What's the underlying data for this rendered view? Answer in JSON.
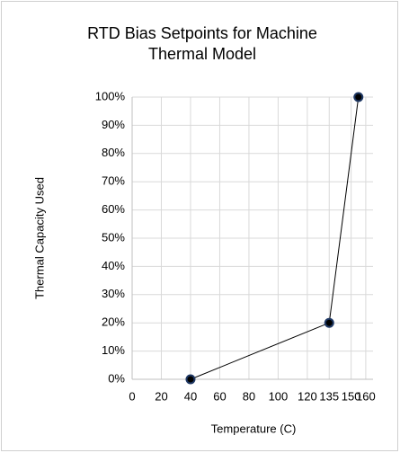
{
  "chart_data": {
    "type": "line",
    "title": "RTD Bias Setpoints for Machine Thermal Model",
    "xlabel": "Temperature (C)",
    "ylabel": "Thermal Capacity Used",
    "x": [
      40,
      135,
      155
    ],
    "series": [
      {
        "name": "RTD Bias",
        "color": "#000000",
        "marker_color": "#1f3864",
        "values": [
          0,
          20,
          100
        ]
      }
    ],
    "xlim": [
      0,
      165
    ],
    "xticks": [
      0,
      20,
      40,
      60,
      80,
      100,
      120,
      135,
      150,
      160
    ],
    "ylim": [
      0,
      100
    ],
    "yticks": [
      {
        "value": 0,
        "label": "0%"
      },
      {
        "value": 10,
        "label": "10%"
      },
      {
        "value": 20,
        "label": "20%"
      },
      {
        "value": 30,
        "label": "30%"
      },
      {
        "value": 40,
        "label": "40%"
      },
      {
        "value": 50,
        "label": "50%"
      },
      {
        "value": 60,
        "label": "60%"
      },
      {
        "value": 70,
        "label": "70%"
      },
      {
        "value": 80,
        "label": "80%"
      },
      {
        "value": 90,
        "label": "90%"
      },
      {
        "value": 100,
        "label": "100%"
      }
    ],
    "grid": true
  }
}
